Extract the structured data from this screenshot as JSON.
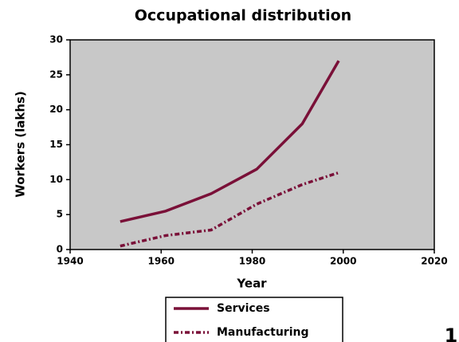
{
  "chart_data": {
    "type": "line",
    "title": "Occupational distribution",
    "x_label": "Year",
    "y_label": "Workers (lakhs)",
    "x": [
      1951,
      1961,
      1971,
      1981,
      1991,
      1999
    ],
    "series": [
      {
        "name": "Services",
        "color": "#7a1038",
        "style": "solid",
        "values": [
          4,
          5.5,
          8,
          11.5,
          18,
          27
        ]
      },
      {
        "name": "Manufacturing",
        "color": "#7a1038",
        "style": "dashed",
        "values": [
          0.5,
          2,
          2.8,
          6.5,
          9.3,
          11
        ]
      }
    ],
    "xlim": [
      1940,
      2020
    ],
    "xticks": [
      1940,
      1960,
      1980,
      2000,
      2020
    ],
    "ylim": [
      0,
      30
    ],
    "yticks": [
      0,
      5,
      10,
      15,
      20,
      25,
      30
    ],
    "plot_background": "#c8c8c8",
    "annotation": "1"
  }
}
